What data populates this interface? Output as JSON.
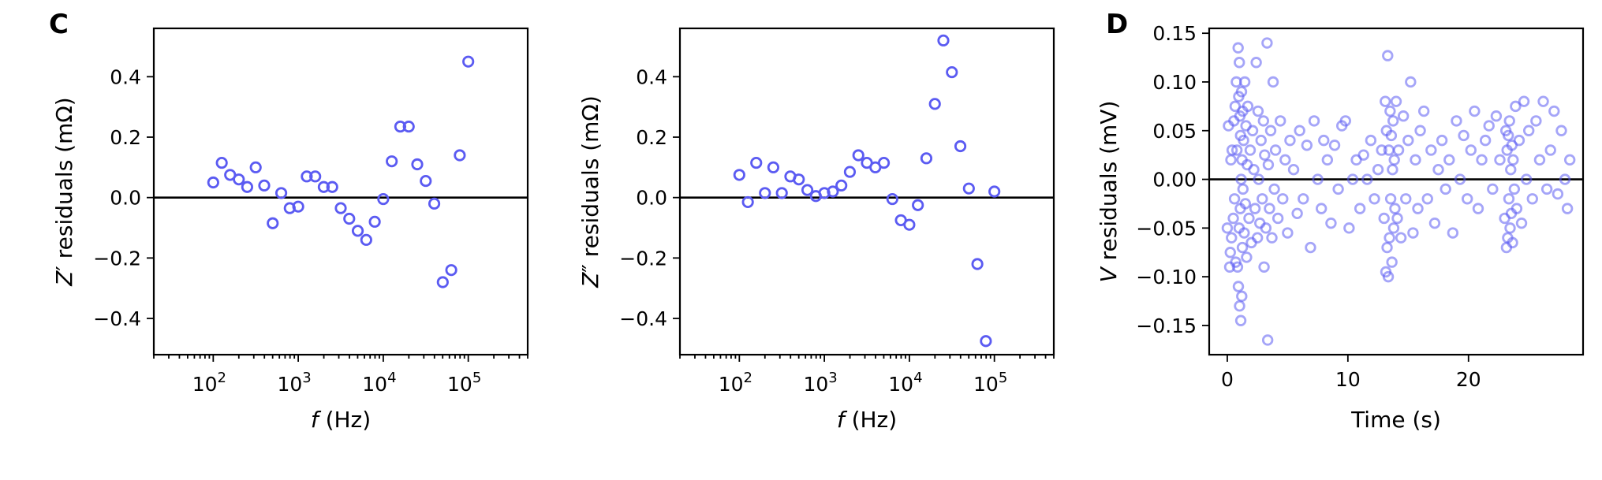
{
  "panels": {
    "left_letter": "C",
    "right_letter": "D"
  },
  "colors": {
    "marker": "#5b5bf2",
    "marker_faded": "#8a8af5",
    "axis": "#000000"
  },
  "chart_data": [
    {
      "type": "scatter",
      "xscale": "log",
      "xlabel_var": "f",
      "xlabel_unit": " (Hz)",
      "ylabel_pre": "Z",
      "ylabel_mark": "′",
      "ylabel_post": " residuals (mΩ)",
      "xlim": [
        20,
        500000
      ],
      "ylim": [
        -0.52,
        0.56
      ],
      "yticks": [
        -0.4,
        -0.2,
        0.0,
        0.2,
        0.4
      ],
      "ytick_labels": [
        "−0.4",
        "−0.2",
        "0.0",
        "0.2",
        "0.4"
      ],
      "xticks": [
        100,
        1000,
        10000,
        100000
      ],
      "xtick_bases": [
        "10",
        "10",
        "10",
        "10"
      ],
      "xtick_exps": [
        "2",
        "3",
        "4",
        "5"
      ],
      "hline": 0,
      "points": [
        [
          100,
          0.05
        ],
        [
          126,
          0.115
        ],
        [
          158,
          0.075
        ],
        [
          200,
          0.06
        ],
        [
          251,
          0.035
        ],
        [
          316,
          0.1
        ],
        [
          398,
          0.04
        ],
        [
          501,
          -0.085
        ],
        [
          631,
          0.015
        ],
        [
          794,
          -0.035
        ],
        [
          1000,
          -0.03
        ],
        [
          1259,
          0.07
        ],
        [
          1585,
          0.07
        ],
        [
          1995,
          0.035
        ],
        [
          2512,
          0.035
        ],
        [
          3162,
          -0.035
        ],
        [
          3981,
          -0.07
        ],
        [
          5012,
          -0.11
        ],
        [
          6310,
          -0.14
        ],
        [
          7943,
          -0.08
        ],
        [
          10000,
          -0.005
        ],
        [
          12589,
          0.12
        ],
        [
          15849,
          0.235
        ],
        [
          19953,
          0.235
        ],
        [
          25119,
          0.11
        ],
        [
          31623,
          0.055
        ],
        [
          39811,
          -0.02
        ],
        [
          50119,
          -0.28
        ],
        [
          63096,
          -0.24
        ],
        [
          79433,
          0.14
        ],
        [
          100000,
          0.45
        ]
      ]
    },
    {
      "type": "scatter",
      "xscale": "log",
      "xlabel_var": "f",
      "xlabel_unit": " (Hz)",
      "ylabel_pre": "Z",
      "ylabel_mark": "″",
      "ylabel_post": " residuals (mΩ)",
      "xlim": [
        20,
        500000
      ],
      "ylim": [
        -0.52,
        0.56
      ],
      "yticks": [
        -0.4,
        -0.2,
        0.0,
        0.2,
        0.4
      ],
      "ytick_labels": [
        "−0.4",
        "−0.2",
        "0.0",
        "0.2",
        "0.4"
      ],
      "xticks": [
        100,
        1000,
        10000,
        100000
      ],
      "xtick_bases": [
        "10",
        "10",
        "10",
        "10"
      ],
      "xtick_exps": [
        "2",
        "3",
        "4",
        "5"
      ],
      "hline": 0,
      "points": [
        [
          100,
          0.075
        ],
        [
          126,
          -0.015
        ],
        [
          158,
          0.115
        ],
        [
          200,
          0.015
        ],
        [
          251,
          0.1
        ],
        [
          316,
          0.015
        ],
        [
          398,
          0.07
        ],
        [
          501,
          0.06
        ],
        [
          631,
          0.025
        ],
        [
          794,
          0.005
        ],
        [
          1000,
          0.015
        ],
        [
          1259,
          0.02
        ],
        [
          1585,
          0.04
        ],
        [
          1995,
          0.085
        ],
        [
          2512,
          0.14
        ],
        [
          3162,
          0.115
        ],
        [
          3981,
          0.1
        ],
        [
          5012,
          0.115
        ],
        [
          6310,
          -0.005
        ],
        [
          7943,
          -0.075
        ],
        [
          10000,
          -0.09
        ],
        [
          12589,
          -0.025
        ],
        [
          15849,
          0.13
        ],
        [
          19953,
          0.31
        ],
        [
          25119,
          0.52
        ],
        [
          31623,
          0.415
        ],
        [
          39811,
          0.17
        ],
        [
          50119,
          0.03
        ],
        [
          63096,
          -0.22
        ],
        [
          79433,
          -0.475
        ],
        [
          100000,
          0.02
        ]
      ]
    },
    {
      "type": "scatter",
      "xscale": "linear",
      "xlabel_var": "",
      "xlabel_unit": "Time (s)",
      "ylabel_pre": "V",
      "ylabel_mark": "",
      "ylabel_post": " residuals (mV)",
      "xlim": [
        -1.5,
        29.5
      ],
      "ylim": [
        -0.18,
        0.155
      ],
      "yticks": [
        -0.15,
        -0.1,
        -0.05,
        0.0,
        0.05,
        0.1,
        0.15
      ],
      "ytick_labels": [
        "−0.15",
        "−0.10",
        "−0.05",
        "0.00",
        "0.05",
        "0.10",
        "0.15"
      ],
      "xticks": [
        0,
        10,
        20
      ],
      "xtick_labels": [
        "0",
        "10",
        "20"
      ],
      "hline": 0,
      "marker_opacity": 0.55,
      "points": [
        [
          0.0,
          -0.05
        ],
        [
          0.1,
          0.055
        ],
        [
          0.2,
          -0.09
        ],
        [
          0.25,
          -0.075
        ],
        [
          0.3,
          0.02
        ],
        [
          0.35,
          -0.06
        ],
        [
          0.4,
          0.03
        ],
        [
          0.5,
          -0.04
        ],
        [
          0.55,
          0.06
        ],
        [
          0.6,
          -0.02
        ],
        [
          0.65,
          0.075
        ],
        [
          0.7,
          -0.085
        ],
        [
          0.75,
          0.1
        ],
        [
          0.8,
          0.03
        ],
        [
          0.85,
          -0.09
        ],
        [
          0.9,
          0.135
        ],
        [
          0.92,
          -0.11
        ],
        [
          0.95,
          0.085
        ],
        [
          0.98,
          -0.05
        ],
        [
          1.0,
          0.12
        ],
        [
          1.02,
          -0.13
        ],
        [
          1.05,
          0.065
        ],
        [
          1.08,
          -0.03
        ],
        [
          1.1,
          0.045
        ],
        [
          1.12,
          -0.145
        ],
        [
          1.15,
          0.0
        ],
        [
          1.18,
          0.09
        ],
        [
          1.2,
          -0.12
        ],
        [
          1.22,
          0.02
        ],
        [
          1.25,
          -0.07
        ],
        [
          1.28,
          0.07
        ],
        [
          1.3,
          -0.01
        ],
        [
          1.35,
          0.04
        ],
        [
          1.4,
          -0.055
        ],
        [
          1.45,
          0.1
        ],
        [
          1.5,
          -0.025
        ],
        [
          1.55,
          0.055
        ],
        [
          1.6,
          -0.08
        ],
        [
          1.65,
          0.015
        ],
        [
          1.7,
          0.075
        ],
        [
          1.8,
          -0.04
        ],
        [
          1.9,
          0.03
        ],
        [
          2.0,
          -0.065
        ],
        [
          2.1,
          0.05
        ],
        [
          2.2,
          0.01
        ],
        [
          2.3,
          -0.03
        ],
        [
          2.4,
          0.12
        ],
        [
          2.5,
          -0.06
        ],
        [
          2.55,
          0.07
        ],
        [
          2.6,
          0.0
        ],
        [
          2.7,
          -0.045
        ],
        [
          2.8,
          0.04
        ],
        [
          2.9,
          -0.02
        ],
        [
          3.0,
          0.06
        ],
        [
          3.05,
          -0.09
        ],
        [
          3.1,
          0.025
        ],
        [
          3.2,
          -0.05
        ],
        [
          3.3,
          0.14
        ],
        [
          3.35,
          -0.165
        ],
        [
          3.4,
          0.015
        ],
        [
          3.5,
          -0.03
        ],
        [
          3.6,
          0.05
        ],
        [
          3.7,
          -0.06
        ],
        [
          3.8,
          0.1
        ],
        [
          3.9,
          -0.01
        ],
        [
          4.0,
          0.03
        ],
        [
          4.2,
          -0.04
        ],
        [
          4.4,
          0.06
        ],
        [
          4.6,
          -0.02
        ],
        [
          4.8,
          0.02
        ],
        [
          5.0,
          -0.055
        ],
        [
          5.2,
          0.04
        ],
        [
          5.5,
          0.01
        ],
        [
          5.8,
          -0.035
        ],
        [
          6.0,
          0.05
        ],
        [
          6.3,
          -0.02
        ],
        [
          6.6,
          0.035
        ],
        [
          6.9,
          -0.07
        ],
        [
          7.2,
          0.06
        ],
        [
          7.5,
          0.0
        ],
        [
          7.8,
          -0.03
        ],
        [
          8.0,
          0.04
        ],
        [
          8.3,
          0.02
        ],
        [
          8.6,
          -0.045
        ],
        [
          8.9,
          0.035
        ],
        [
          9.2,
          -0.01
        ],
        [
          9.5,
          0.055
        ],
        [
          9.8,
          0.06
        ],
        [
          10.1,
          -0.05
        ],
        [
          10.4,
          0.0
        ],
        [
          10.7,
          0.02
        ],
        [
          11.0,
          -0.03
        ],
        [
          11.3,
          0.025
        ],
        [
          11.6,
          0.0
        ],
        [
          11.9,
          0.04
        ],
        [
          12.2,
          -0.02
        ],
        [
          12.5,
          0.01
        ],
        [
          12.8,
          0.03
        ],
        [
          13.0,
          -0.04
        ],
        [
          13.1,
          0.08
        ],
        [
          13.15,
          -0.095
        ],
        [
          13.2,
          0.05
        ],
        [
          13.25,
          -0.07
        ],
        [
          13.3,
          0.127
        ],
        [
          13.35,
          -0.1
        ],
        [
          13.4,
          0.03
        ],
        [
          13.45,
          -0.06
        ],
        [
          13.5,
          0.07
        ],
        [
          13.55,
          -0.02
        ],
        [
          13.6,
          0.045
        ],
        [
          13.65,
          -0.085
        ],
        [
          13.7,
          0.01
        ],
        [
          13.75,
          0.06
        ],
        [
          13.8,
          -0.05
        ],
        [
          13.85,
          0.02
        ],
        [
          13.9,
          -0.03
        ],
        [
          14.0,
          0.08
        ],
        [
          14.1,
          -0.04
        ],
        [
          14.2,
          0.03
        ],
        [
          14.4,
          -0.06
        ],
        [
          14.6,
          0.065
        ],
        [
          14.8,
          -0.02
        ],
        [
          15.0,
          0.04
        ],
        [
          15.2,
          0.1
        ],
        [
          15.4,
          -0.055
        ],
        [
          15.6,
          0.02
        ],
        [
          15.8,
          -0.03
        ],
        [
          16.0,
          0.05
        ],
        [
          16.3,
          0.07
        ],
        [
          16.6,
          -0.02
        ],
        [
          16.9,
          0.03
        ],
        [
          17.2,
          -0.045
        ],
        [
          17.5,
          0.01
        ],
        [
          17.8,
          0.04
        ],
        [
          18.1,
          -0.01
        ],
        [
          18.4,
          0.02
        ],
        [
          18.7,
          -0.055
        ],
        [
          19.0,
          0.06
        ],
        [
          19.3,
          0.0
        ],
        [
          19.6,
          0.045
        ],
        [
          19.9,
          -0.02
        ],
        [
          20.2,
          0.03
        ],
        [
          20.5,
          0.07
        ],
        [
          20.8,
          -0.03
        ],
        [
          21.1,
          0.02
        ],
        [
          21.4,
          0.04
        ],
        [
          21.7,
          0.055
        ],
        [
          22.0,
          -0.01
        ],
        [
          22.3,
          0.065
        ],
        [
          22.6,
          0.02
        ],
        [
          23.0,
          -0.04
        ],
        [
          23.1,
          0.05
        ],
        [
          23.15,
          -0.07
        ],
        [
          23.2,
          0.03
        ],
        [
          23.25,
          -0.06
        ],
        [
          23.3,
          0.045
        ],
        [
          23.35,
          -0.02
        ],
        [
          23.4,
          0.06
        ],
        [
          23.45,
          -0.05
        ],
        [
          23.5,
          0.01
        ],
        [
          23.55,
          -0.035
        ],
        [
          23.6,
          0.035
        ],
        [
          23.65,
          -0.065
        ],
        [
          23.7,
          0.02
        ],
        [
          23.8,
          -0.01
        ],
        [
          23.9,
          0.075
        ],
        [
          24.0,
          -0.03
        ],
        [
          24.2,
          0.04
        ],
        [
          24.4,
          -0.045
        ],
        [
          24.6,
          0.08
        ],
        [
          24.8,
          0.0
        ],
        [
          25.0,
          0.05
        ],
        [
          25.3,
          -0.02
        ],
        [
          25.6,
          0.06
        ],
        [
          25.9,
          0.02
        ],
        [
          26.2,
          0.08
        ],
        [
          26.5,
          -0.01
        ],
        [
          26.8,
          0.03
        ],
        [
          27.1,
          0.07
        ],
        [
          27.4,
          -0.015
        ],
        [
          27.7,
          0.05
        ],
        [
          28.0,
          0.0
        ],
        [
          28.2,
          -0.03
        ],
        [
          28.4,
          0.02
        ]
      ]
    }
  ]
}
